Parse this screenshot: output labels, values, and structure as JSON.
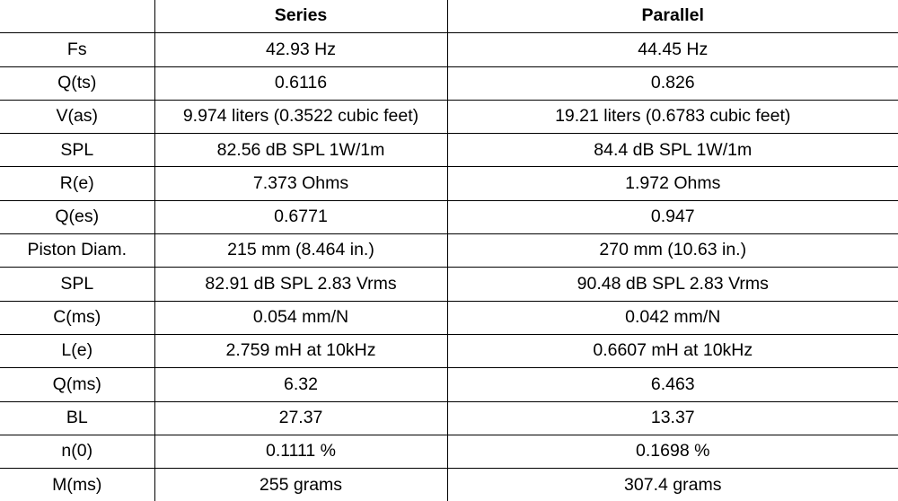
{
  "table": {
    "headers": [
      "",
      "Series",
      "Parallel"
    ],
    "rows": [
      [
        "Fs",
        "42.93 Hz",
        "44.45 Hz"
      ],
      [
        "Q(ts)",
        "0.6116",
        "0.826"
      ],
      [
        "V(as)",
        "9.974 liters (0.3522 cubic feet)",
        "19.21 liters (0.6783 cubic feet)"
      ],
      [
        "SPL",
        "82.56 dB SPL 1W/1m",
        "84.4 dB SPL 1W/1m"
      ],
      [
        "R(e)",
        "7.373 Ohms",
        "1.972 Ohms"
      ],
      [
        "Q(es)",
        "0.6771",
        "0.947"
      ],
      [
        "Piston Diam.",
        "215 mm (8.464 in.)",
        "270 mm (10.63 in.)"
      ],
      [
        "SPL",
        "82.91 dB SPL 2.83 Vrms",
        "90.48 dB SPL 2.83 Vrms"
      ],
      [
        "C(ms)",
        "0.054 mm/N",
        "0.042 mm/N"
      ],
      [
        "L(e)",
        "2.759 mH at 10kHz",
        "0.6607 mH at 10kHz"
      ],
      [
        "Q(ms)",
        "6.32",
        "6.463"
      ],
      [
        "BL",
        "27.37",
        "13.37"
      ],
      [
        "n(0)",
        "0.1111 %",
        "0.1698 %"
      ],
      [
        "M(ms)",
        "255 grams",
        "307.4 grams"
      ]
    ]
  }
}
